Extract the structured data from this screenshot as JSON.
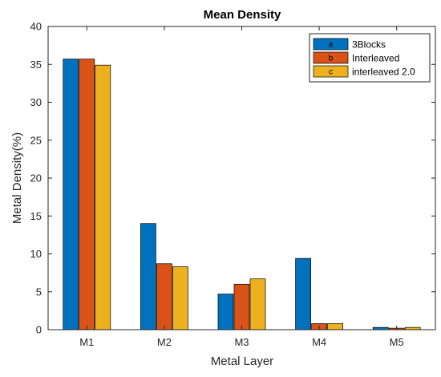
{
  "chart_data": {
    "type": "bar",
    "title": "Mean Density",
    "xlabel": "Metal Layer",
    "ylabel": "Metal Density(%)",
    "categories": [
      "M1",
      "M2",
      "M3",
      "M4",
      "M5"
    ],
    "ylim": [
      0,
      40
    ],
    "yticks": [
      0,
      5,
      10,
      15,
      20,
      25,
      30,
      35,
      40
    ],
    "grid": false,
    "legend_position": "top-right",
    "series": [
      {
        "name": "3Blocks",
        "code": "a",
        "color": "#0072BD",
        "values": [
          35.7,
          14.0,
          4.7,
          9.4,
          0.3
        ]
      },
      {
        "name": "Interleaved",
        "code": "b",
        "color": "#D95319",
        "values": [
          35.7,
          8.7,
          6.0,
          0.8,
          0.2
        ]
      },
      {
        "name": "interleaved 2.0",
        "code": "c",
        "color": "#EDB120",
        "values": [
          34.9,
          8.3,
          6.7,
          0.8,
          0.3
        ]
      }
    ]
  }
}
